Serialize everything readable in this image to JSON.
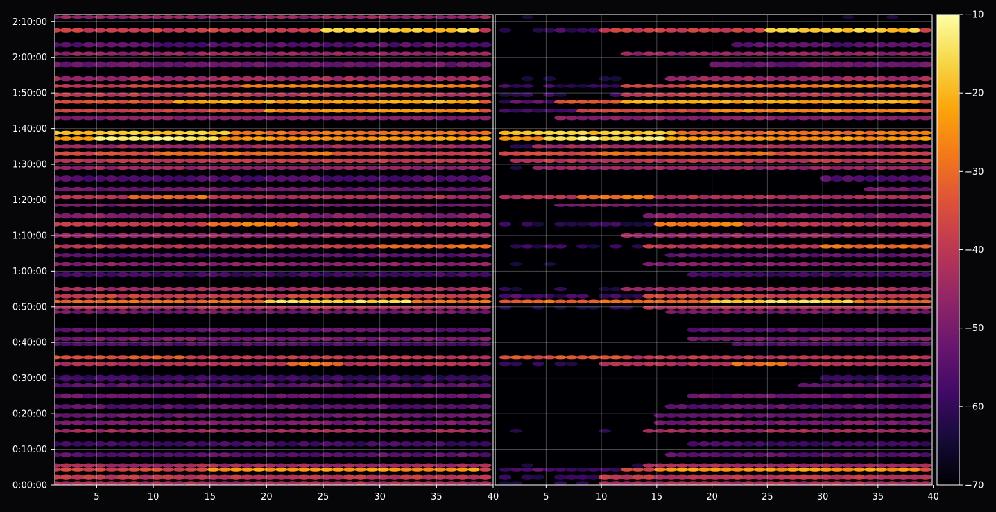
{
  "chart_data": {
    "type": "heatmap",
    "title": "",
    "xlabel": "",
    "ylabel": "",
    "panels": [
      {
        "name": "",
        "xlim": [
          1.3,
          40
        ],
        "xticks": [
          5,
          10,
          15,
          20,
          25,
          30,
          35,
          40
        ]
      },
      {
        "name": "",
        "xlim": [
          0.4,
          39.9
        ],
        "xticks": [
          5,
          10,
          15,
          20,
          25,
          30,
          35,
          40
        ]
      }
    ],
    "y_axis": {
      "unit": "h:mm:ss",
      "range_minutes": [
        0,
        132
      ],
      "ticks": [
        {
          "label": "0:00:00",
          "minutes": 0
        },
        {
          "label": "0:10:00",
          "minutes": 10
        },
        {
          "label": "0:20:00",
          "minutes": 20
        },
        {
          "label": "0:30:00",
          "minutes": 30
        },
        {
          "label": "0:40:00",
          "minutes": 40
        },
        {
          "label": "0:50:00",
          "minutes": 50
        },
        {
          "label": "1:00:00",
          "minutes": 60
        },
        {
          "label": "1:10:00",
          "minutes": 70
        },
        {
          "label": "1:20:00",
          "minutes": 80
        },
        {
          "label": "1:30:00",
          "minutes": 90
        },
        {
          "label": "1:40:00",
          "minutes": 100
        },
        {
          "label": "1:50:00",
          "minutes": 110
        },
        {
          "label": "2:00:00",
          "minutes": 120
        },
        {
          "label": "2:10:00",
          "minutes": 130
        }
      ]
    },
    "colorbar": {
      "colormap": "inferno",
      "range": [
        -70,
        -10
      ],
      "ticks": [
        -10,
        -20,
        -30,
        -40,
        -50,
        -60,
        -70
      ],
      "tick_labels": [
        "−10",
        "−20",
        "−30",
        "−40",
        "−50",
        "−60",
        "−70"
      ]
    },
    "grid": true,
    "bands": [
      {
        "minutes": 131.3,
        "value": -46,
        "width": 0.6,
        "onset_b": 40
      },
      {
        "minutes": 127.6,
        "value": -38,
        "width": 1.0,
        "peak": -18,
        "peak_x": [
          25,
          38
        ],
        "onset_b": 10
      },
      {
        "minutes": 123.5,
        "value": -55,
        "width": 1.2,
        "onset_b": 22
      },
      {
        "minutes": 121.0,
        "value": -46,
        "width": 1.0,
        "onset_b": 12
      },
      {
        "minutes": 118.0,
        "value": -52,
        "width": 1.4,
        "onset_b": 20
      },
      {
        "minutes": 114.0,
        "value": -44,
        "width": 1.2,
        "onset_b": 16
      },
      {
        "minutes": 112.0,
        "value": -38,
        "width": 0.9,
        "peak": -28,
        "peak_x": [
          18,
          38
        ],
        "onset_b": 12
      },
      {
        "minutes": 109.5,
        "value": -40,
        "width": 1.0,
        "onset_b": 12
      },
      {
        "minutes": 107.5,
        "value": -34,
        "width": 0.8,
        "peak": -22,
        "peak_x": [
          12,
          38
        ],
        "onset_b": 6
      },
      {
        "minutes": 105.0,
        "value": -36,
        "width": 0.8,
        "peak": -25,
        "peak_x": [
          20,
          38
        ],
        "onset_b": 8
      },
      {
        "minutes": 103.0,
        "value": -48,
        "width": 1.0,
        "onset_b": 6
      },
      {
        "minutes": 98.8,
        "value": -30,
        "width": 1.0,
        "peak": -18,
        "peak_x": [
          1,
          16
        ],
        "onset_b": 0
      },
      {
        "minutes": 97.2,
        "value": -24,
        "width": 0.9,
        "peak": -14,
        "peak_x": [
          5,
          15
        ],
        "onset_b": 0
      },
      {
        "minutes": 95.0,
        "value": -44,
        "width": 1.0,
        "onset_b": 4
      },
      {
        "minutes": 93.0,
        "value": -36,
        "width": 1.0,
        "peak": -30,
        "peak_x": [
          10,
          25
        ],
        "onset_b": 0
      },
      {
        "minutes": 91.0,
        "value": -40,
        "width": 1.0,
        "onset_b": 2
      },
      {
        "minutes": 89.0,
        "value": -46,
        "width": 0.9,
        "onset_b": 4
      },
      {
        "minutes": 86.0,
        "value": -56,
        "width": 1.4,
        "onset_b": 30
      },
      {
        "minutes": 83.0,
        "value": -52,
        "width": 1.0,
        "onset_b": 34
      },
      {
        "minutes": 80.8,
        "value": -42,
        "width": 0.9,
        "peak": -30,
        "peak_x": [
          8,
          14
        ],
        "onset_b": 1
      },
      {
        "minutes": 78.5,
        "value": -50,
        "width": 0.8,
        "onset_b": 6
      },
      {
        "minutes": 75.5,
        "value": -48,
        "width": 1.2,
        "onset_b": 14
      },
      {
        "minutes": 73.2,
        "value": -40,
        "width": 1.0,
        "peak": -28,
        "peak_x": [
          15,
          22
        ],
        "onset_b": 15
      },
      {
        "minutes": 70.0,
        "value": -46,
        "width": 1.0,
        "onset_b": 12
      },
      {
        "minutes": 67.0,
        "value": -40,
        "width": 1.0,
        "peak": -30,
        "peak_x": [
          30,
          40
        ],
        "onset_b": 14
      },
      {
        "minutes": 64.5,
        "value": -54,
        "width": 1.0,
        "onset_b": 16
      },
      {
        "minutes": 62.0,
        "value": -48,
        "width": 1.0,
        "onset_b": 14
      },
      {
        "minutes": 59.0,
        "value": -58,
        "width": 1.2,
        "onset_b": 18
      },
      {
        "minutes": 55.0,
        "value": -44,
        "width": 1.0,
        "onset_b": 12
      },
      {
        "minutes": 53.0,
        "value": -38,
        "width": 1.0,
        "onset_b": 14
      },
      {
        "minutes": 51.5,
        "value": -30,
        "width": 0.8,
        "peak": -16,
        "peak_x": [
          20,
          32
        ],
        "onset_b": 1
      },
      {
        "minutes": 49.8,
        "value": -42,
        "width": 0.9,
        "onset_b": 14
      },
      {
        "minutes": 48.5,
        "value": -50,
        "width": 0.7,
        "onset_b": 16
      },
      {
        "minutes": 43.5,
        "value": -54,
        "width": 1.0,
        "onset_b": 18
      },
      {
        "minutes": 41.0,
        "value": -50,
        "width": 1.0,
        "onset_b": 18
      },
      {
        "minutes": 39.5,
        "value": -56,
        "width": 0.8,
        "onset_b": 22
      },
      {
        "minutes": 35.8,
        "value": -40,
        "width": 0.8,
        "peak": -34,
        "peak_x": [
          1,
          12
        ],
        "onset_b": 1
      },
      {
        "minutes": 34.0,
        "value": -42,
        "width": 1.0,
        "peak": -30,
        "peak_x": [
          22,
          26
        ],
        "onset_b": 10
      },
      {
        "minutes": 30.0,
        "value": -60,
        "width": 1.6,
        "onset_b": 30
      },
      {
        "minutes": 28.0,
        "value": -54,
        "width": 1.0,
        "onset_b": 28
      },
      {
        "minutes": 25.0,
        "value": -52,
        "width": 1.2,
        "onset_b": 18
      },
      {
        "minutes": 22.0,
        "value": -54,
        "width": 1.2,
        "onset_b": 16
      },
      {
        "minutes": 19.5,
        "value": -52,
        "width": 1.0,
        "onset_b": 15
      },
      {
        "minutes": 17.5,
        "value": -50,
        "width": 1.2,
        "onset_b": 15
      },
      {
        "minutes": 15.2,
        "value": -44,
        "width": 0.9,
        "onset_b": 14
      },
      {
        "minutes": 11.5,
        "value": -58,
        "width": 1.2,
        "onset_b": 18
      },
      {
        "minutes": 8.5,
        "value": -54,
        "width": 1.0,
        "onset_b": 16
      },
      {
        "minutes": 5.5,
        "value": -44,
        "width": 1.0,
        "onset_b": 14
      },
      {
        "minutes": 4.3,
        "value": -36,
        "width": 0.9,
        "peak": -24,
        "peak_x": [
          15,
          38
        ],
        "onset_b": 12
      },
      {
        "minutes": 2.2,
        "value": -40,
        "width": 1.3,
        "onset_b": 10
      },
      {
        "minutes": 0.5,
        "value": -42,
        "width": 1.0,
        "onset_b": 10
      }
    ]
  }
}
